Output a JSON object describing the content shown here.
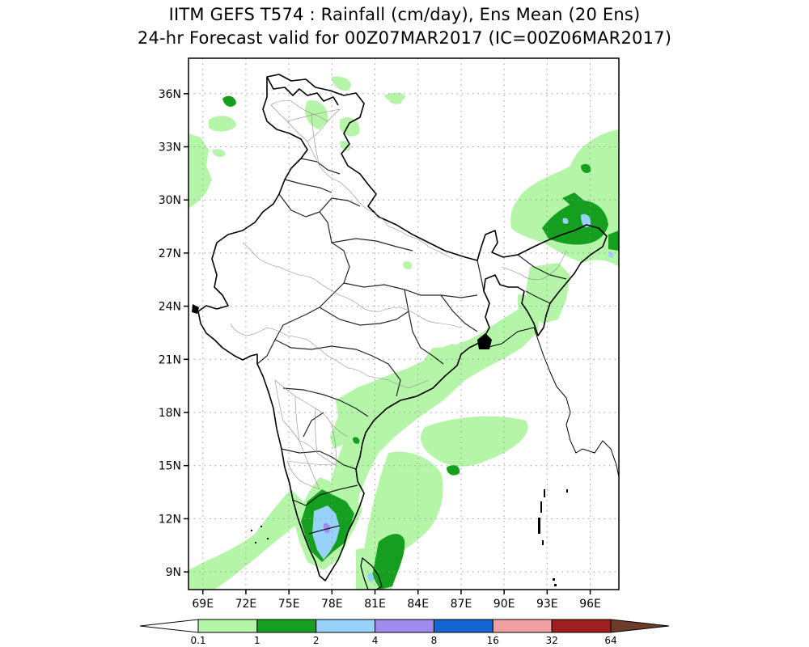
{
  "title": {
    "line1": "IITM GEFS T574 : Rainfall (cm/day), Ens Mean (20 Ens)",
    "line2": "24-hr Forecast valid for 00Z07MAR2017 (IC=00Z06MAR2017)"
  },
  "map": {
    "lon_range": [
      68.0,
      98.0
    ],
    "lat_range": [
      8.0,
      38.0
    ],
    "lat_ticks": [
      {
        "value": 9,
        "label": "9N"
      },
      {
        "value": 12,
        "label": "12N"
      },
      {
        "value": 15,
        "label": "15N"
      },
      {
        "value": 18,
        "label": "18N"
      },
      {
        "value": 21,
        "label": "21N"
      },
      {
        "value": 24,
        "label": "24N"
      },
      {
        "value": 27,
        "label": "27N"
      },
      {
        "value": 30,
        "label": "30N"
      },
      {
        "value": 33,
        "label": "33N"
      },
      {
        "value": 36,
        "label": "36N"
      }
    ],
    "lon_ticks": [
      {
        "value": 69,
        "label": "69E"
      },
      {
        "value": 72,
        "label": "72E"
      },
      {
        "value": 75,
        "label": "75E"
      },
      {
        "value": 78,
        "label": "78E"
      },
      {
        "value": 81,
        "label": "81E"
      },
      {
        "value": 84,
        "label": "84E"
      },
      {
        "value": 87,
        "label": "87E"
      },
      {
        "value": 90,
        "label": "90E"
      },
      {
        "value": 93,
        "label": "93E"
      },
      {
        "value": 96,
        "label": "96E"
      }
    ],
    "grid": true
  },
  "colorbar": {
    "labels": [
      "0.1",
      "1",
      "2",
      "4",
      "8",
      "16",
      "32",
      "64"
    ],
    "colors": [
      "#b4f5a8",
      "#14a01e",
      "#96d2fa",
      "#a08cf0",
      "#1464d2",
      "#f0a0a0",
      "#a01e1e"
    ],
    "under_color": "#ffffff",
    "over_color": "#6b3c2a"
  },
  "colors": {
    "light_green": "#b4f5a8",
    "green": "#14a01e",
    "light_blue": "#96d2fa",
    "purple": "#a08cf0",
    "land": "#ffffff",
    "boundary": "#000000",
    "district": "#8c8c8c"
  }
}
